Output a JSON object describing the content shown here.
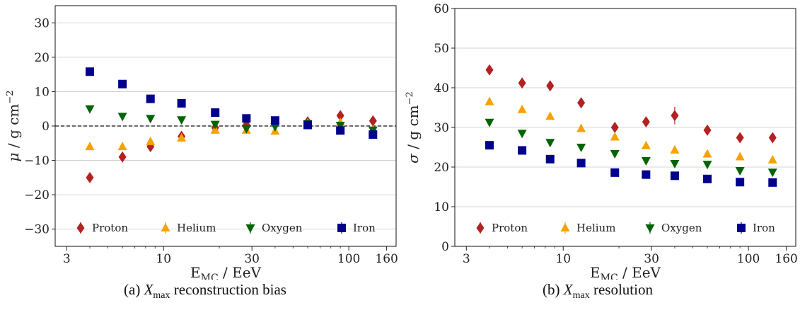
{
  "chart_data": [
    {
      "type": "scatter",
      "panel": "a",
      "caption": {
        "tag": "(a)",
        "symbol": "X",
        "sub": "max",
        "text": "reconstruction bias"
      },
      "xlabel": {
        "main": "E",
        "sub": "MC",
        "rest": " / EeV"
      },
      "ylabel": {
        "sym": "μ",
        "rest": " / g cm",
        "sup": "−2"
      },
      "x_scale": "log",
      "xlim": [
        2.6,
        180
      ],
      "xticks": [
        3,
        10,
        30,
        100,
        160
      ],
      "xtick_labels": [
        "3",
        "10",
        "30",
        "100",
        "160"
      ],
      "ylim": [
        -35,
        35
      ],
      "yticks": [
        -30,
        -20,
        -10,
        0,
        10,
        20,
        30
      ],
      "ytick_labels": [
        "−30",
        "−20",
        "−10",
        "0",
        "10",
        "20",
        "30"
      ],
      "grid": "horizontal",
      "reference_line": {
        "y": 0,
        "style": "dashed"
      },
      "legend": {
        "placement": "bottom",
        "entries": [
          "Proton",
          "Helium",
          "Oxygen",
          "Iron"
        ]
      },
      "series": [
        {
          "name": "Proton",
          "marker": "diamond",
          "color": "#b22222",
          "x": [
            4.0,
            6.0,
            8.5,
            12.5,
            19.0,
            28.0,
            40.0,
            60.0,
            90.0,
            135.0
          ],
          "y": [
            -15.0,
            -9.0,
            -6.0,
            -3.0,
            -0.5,
            0.3,
            0.5,
            1.2,
            3.0,
            1.5
          ],
          "err": [
            1.2,
            1.0,
            0.8,
            0.8,
            0.7,
            0.7,
            1.2,
            0.8,
            1.0,
            1.0
          ]
        },
        {
          "name": "Helium",
          "marker": "triangle-up",
          "color": "#f5a300",
          "x": [
            4.0,
            6.0,
            8.5,
            12.5,
            19.0,
            28.0,
            40.0,
            60.0,
            90.0,
            135.0
          ],
          "y": [
            -6.0,
            -6.0,
            -4.5,
            -3.5,
            -1.2,
            -1.2,
            -1.5,
            0.8,
            1.0,
            -1.0
          ],
          "err": [
            0.6,
            0.6,
            0.6,
            0.6,
            0.5,
            0.5,
            0.5,
            0.5,
            0.6,
            0.6
          ]
        },
        {
          "name": "Oxygen",
          "marker": "triangle-down",
          "color": "#006400",
          "x": [
            4.0,
            6.0,
            8.5,
            12.5,
            19.0,
            28.0,
            40.0,
            60.0,
            90.0,
            135.0
          ],
          "y": [
            5.0,
            2.8,
            2.2,
            1.8,
            0.5,
            -0.8,
            -0.2,
            0.7,
            0.2,
            -1.2
          ],
          "err": [
            0.5,
            0.5,
            0.5,
            0.5,
            0.5,
            0.5,
            0.5,
            0.5,
            0.5,
            0.5
          ]
        },
        {
          "name": "Iron",
          "marker": "square",
          "color": "#00008b",
          "x": [
            4.0,
            6.0,
            8.5,
            12.5,
            19.0,
            28.0,
            40.0,
            60.0,
            90.0,
            135.0
          ],
          "y": [
            15.8,
            12.2,
            7.9,
            6.6,
            3.9,
            2.2,
            1.6,
            0.3,
            -1.3,
            -2.5
          ],
          "err": [
            0.5,
            0.5,
            0.5,
            0.5,
            0.5,
            0.5,
            0.5,
            0.5,
            0.5,
            0.5
          ]
        }
      ]
    },
    {
      "type": "scatter",
      "panel": "b",
      "caption": {
        "tag": "(b)",
        "symbol": "X",
        "sub": "max",
        "text": "resolution"
      },
      "xlabel": {
        "main": "E",
        "sub": "MC",
        "rest": " / EeV"
      },
      "ylabel": {
        "sym": "σ",
        "rest": " / g cm",
        "sup": "−2"
      },
      "x_scale": "log",
      "xlim": [
        2.6,
        180
      ],
      "xticks": [
        3,
        10,
        30,
        100,
        160
      ],
      "xtick_labels": [
        "3",
        "10",
        "30",
        "100",
        "160"
      ],
      "ylim": [
        0,
        60
      ],
      "yticks": [
        0,
        10,
        20,
        30,
        40,
        50,
        60
      ],
      "ytick_labels": [
        "0",
        "10",
        "20",
        "30",
        "40",
        "50",
        "60"
      ],
      "grid": "horizontal",
      "legend": {
        "placement": "bottom",
        "entries": [
          "Proton",
          "Helium",
          "Oxygen",
          "Iron"
        ]
      },
      "series": [
        {
          "name": "Proton",
          "marker": "diamond",
          "color": "#b22222",
          "x": [
            4.0,
            6.0,
            8.5,
            12.5,
            19.0,
            28.0,
            40.0,
            60.0,
            90.0,
            135.0
          ],
          "y": [
            44.5,
            41.2,
            40.5,
            36.2,
            30.0,
            31.4,
            33.0,
            29.3,
            27.4,
            27.4
          ],
          "err": [
            1.0,
            0.9,
            0.9,
            0.9,
            0.9,
            0.9,
            2.2,
            0.9,
            0.9,
            0.9
          ]
        },
        {
          "name": "Helium",
          "marker": "triangle-up",
          "color": "#f5a300",
          "x": [
            4.0,
            6.0,
            8.5,
            12.5,
            19.0,
            28.0,
            40.0,
            60.0,
            90.0,
            135.0
          ],
          "y": [
            36.5,
            34.5,
            32.8,
            29.7,
            27.6,
            25.4,
            24.3,
            23.3,
            22.6,
            21.8
          ],
          "err": [
            0.5,
            0.5,
            0.5,
            0.5,
            0.5,
            0.5,
            0.5,
            0.5,
            0.5,
            0.5
          ]
        },
        {
          "name": "Oxygen",
          "marker": "triangle-down",
          "color": "#006400",
          "x": [
            4.0,
            6.0,
            8.5,
            12.5,
            19.0,
            28.0,
            40.0,
            60.0,
            90.0,
            135.0
          ],
          "y": [
            31.3,
            28.5,
            26.2,
            25.0,
            23.4,
            21.6,
            20.9,
            20.7,
            19.1,
            18.7
          ],
          "err": [
            0.5,
            0.5,
            0.5,
            0.5,
            0.5,
            0.5,
            0.5,
            0.5,
            0.5,
            0.5
          ]
        },
        {
          "name": "Iron",
          "marker": "square",
          "color": "#00008b",
          "x": [
            4.0,
            6.0,
            8.5,
            12.5,
            19.0,
            28.0,
            40.0,
            60.0,
            90.0,
            135.0
          ],
          "y": [
            25.5,
            24.2,
            22.0,
            21.0,
            18.6,
            18.1,
            17.8,
            17.0,
            16.2,
            16.1
          ],
          "err": [
            0.4,
            0.4,
            0.4,
            0.4,
            0.4,
            0.4,
            0.4,
            0.4,
            0.4,
            0.4
          ]
        }
      ]
    }
  ]
}
